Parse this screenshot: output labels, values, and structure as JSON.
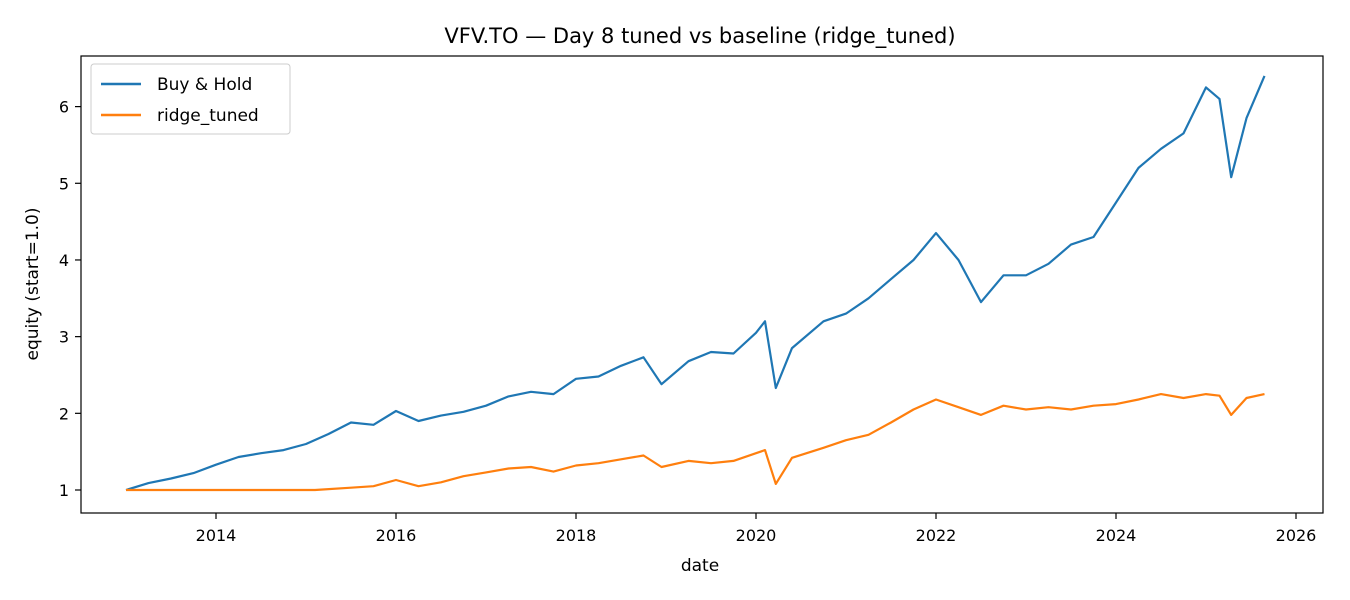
{
  "chart_data": {
    "type": "line",
    "title": "VFV.TO — Day 8 tuned vs baseline (ridge_tuned)",
    "xlabel": "date",
    "ylabel": "equity (start=1.0)",
    "xlim": [
      2012.5,
      2026.3
    ],
    "ylim": [
      0.7,
      6.66
    ],
    "xticks": [
      2014,
      2016,
      2018,
      2020,
      2022,
      2024,
      2026
    ],
    "yticks": [
      1,
      2,
      3,
      4,
      5,
      6
    ],
    "grid": false,
    "legend_position": "top-left",
    "series": [
      {
        "name": "Buy & Hold",
        "color": "#1f77b4",
        "points": [
          [
            2013.0,
            1.0
          ],
          [
            2013.25,
            1.09
          ],
          [
            2013.5,
            1.15
          ],
          [
            2013.75,
            1.22
          ],
          [
            2014.0,
            1.33
          ],
          [
            2014.25,
            1.43
          ],
          [
            2014.5,
            1.48
          ],
          [
            2014.75,
            1.52
          ],
          [
            2015.0,
            1.6
          ],
          [
            2015.25,
            1.73
          ],
          [
            2015.5,
            1.88
          ],
          [
            2015.75,
            1.85
          ],
          [
            2016.0,
            2.03
          ],
          [
            2016.25,
            1.9
          ],
          [
            2016.5,
            1.97
          ],
          [
            2016.75,
            2.02
          ],
          [
            2017.0,
            2.1
          ],
          [
            2017.25,
            2.22
          ],
          [
            2017.5,
            2.28
          ],
          [
            2017.75,
            2.25
          ],
          [
            2018.0,
            2.45
          ],
          [
            2018.25,
            2.48
          ],
          [
            2018.5,
            2.62
          ],
          [
            2018.75,
            2.73
          ],
          [
            2018.95,
            2.38
          ],
          [
            2019.25,
            2.68
          ],
          [
            2019.5,
            2.8
          ],
          [
            2019.75,
            2.78
          ],
          [
            2020.0,
            3.05
          ],
          [
            2020.1,
            3.2
          ],
          [
            2020.22,
            2.33
          ],
          [
            2020.4,
            2.85
          ],
          [
            2020.75,
            3.2
          ],
          [
            2021.0,
            3.3
          ],
          [
            2021.25,
            3.5
          ],
          [
            2021.5,
            3.75
          ],
          [
            2021.75,
            4.0
          ],
          [
            2022.0,
            4.35
          ],
          [
            2022.25,
            4.0
          ],
          [
            2022.5,
            3.45
          ],
          [
            2022.75,
            3.8
          ],
          [
            2023.0,
            3.8
          ],
          [
            2023.25,
            3.95
          ],
          [
            2023.5,
            4.2
          ],
          [
            2023.75,
            4.3
          ],
          [
            2024.0,
            4.75
          ],
          [
            2024.25,
            5.2
          ],
          [
            2024.5,
            5.45
          ],
          [
            2024.75,
            5.65
          ],
          [
            2025.0,
            6.25
          ],
          [
            2025.15,
            6.1
          ],
          [
            2025.28,
            5.08
          ],
          [
            2025.45,
            5.85
          ],
          [
            2025.65,
            6.4
          ]
        ]
      },
      {
        "name": "ridge_tuned",
        "color": "#ff7f0e",
        "points": [
          [
            2013.0,
            1.0
          ],
          [
            2015.1,
            1.0
          ],
          [
            2015.5,
            1.03
          ],
          [
            2015.75,
            1.05
          ],
          [
            2016.0,
            1.13
          ],
          [
            2016.25,
            1.05
          ],
          [
            2016.5,
            1.1
          ],
          [
            2016.75,
            1.18
          ],
          [
            2017.0,
            1.23
          ],
          [
            2017.25,
            1.28
          ],
          [
            2017.5,
            1.3
          ],
          [
            2017.75,
            1.24
          ],
          [
            2018.0,
            1.32
          ],
          [
            2018.25,
            1.35
          ],
          [
            2018.5,
            1.4
          ],
          [
            2018.75,
            1.45
          ],
          [
            2018.95,
            1.3
          ],
          [
            2019.25,
            1.38
          ],
          [
            2019.5,
            1.35
          ],
          [
            2019.75,
            1.38
          ],
          [
            2020.0,
            1.48
          ],
          [
            2020.1,
            1.52
          ],
          [
            2020.22,
            1.08
          ],
          [
            2020.4,
            1.42
          ],
          [
            2020.75,
            1.55
          ],
          [
            2021.0,
            1.65
          ],
          [
            2021.25,
            1.72
          ],
          [
            2021.5,
            1.88
          ],
          [
            2021.75,
            2.05
          ],
          [
            2022.0,
            2.18
          ],
          [
            2022.25,
            2.08
          ],
          [
            2022.5,
            1.98
          ],
          [
            2022.75,
            2.1
          ],
          [
            2023.0,
            2.05
          ],
          [
            2023.25,
            2.08
          ],
          [
            2023.5,
            2.05
          ],
          [
            2023.75,
            2.1
          ],
          [
            2024.0,
            2.12
          ],
          [
            2024.25,
            2.18
          ],
          [
            2024.5,
            2.25
          ],
          [
            2024.75,
            2.2
          ],
          [
            2025.0,
            2.25
          ],
          [
            2025.15,
            2.23
          ],
          [
            2025.28,
            1.98
          ],
          [
            2025.45,
            2.2
          ],
          [
            2025.65,
            2.25
          ]
        ]
      }
    ]
  }
}
